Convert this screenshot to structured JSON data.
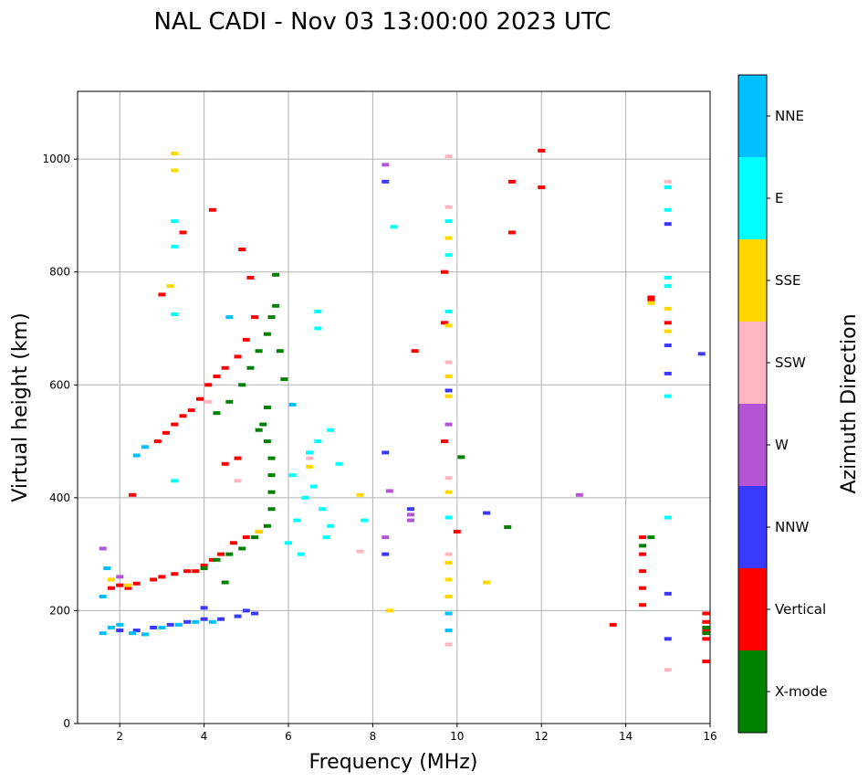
{
  "chart_data": {
    "type": "scatter",
    "title": "NAL CADI - Nov 03 13:00:00 2023 UTC",
    "xlabel": "Frequency (MHz)",
    "ylabel": "Virtual height (km)",
    "xlim": [
      1,
      16
    ],
    "ylim": [
      0,
      1120
    ],
    "xticks": [
      2,
      4,
      6,
      8,
      10,
      12,
      14,
      16
    ],
    "yticks": [
      0,
      200,
      400,
      600,
      800,
      1000
    ],
    "grid": true,
    "colorbar": {
      "label": "Azimuth Direction",
      "categories": [
        {
          "name": "X-mode",
          "color": "#008000"
        },
        {
          "name": "Vertical",
          "color": "#ff0000"
        },
        {
          "name": "NNW",
          "color": "#3a3aff"
        },
        {
          "name": "W",
          "color": "#b455d6"
        },
        {
          "name": "SSW",
          "color": "#ffb6c1"
        },
        {
          "name": "SSE",
          "color": "#ffd700"
        },
        {
          "name": "E",
          "color": "#00ffff"
        },
        {
          "name": "NNE",
          "color": "#00bfff"
        }
      ]
    },
    "series": [
      {
        "name": "Vertical",
        "points": [
          [
            1.8,
            240
          ],
          [
            2.0,
            245
          ],
          [
            2.2,
            240
          ],
          [
            2.4,
            248
          ],
          [
            2.8,
            255
          ],
          [
            3.0,
            260
          ],
          [
            3.3,
            265
          ],
          [
            3.6,
            270
          ],
          [
            3.8,
            270
          ],
          [
            4.0,
            280
          ],
          [
            4.2,
            290
          ],
          [
            4.4,
            300
          ],
          [
            4.7,
            320
          ],
          [
            5.0,
            330
          ],
          [
            5.3,
            340
          ],
          [
            2.9,
            500
          ],
          [
            3.1,
            515
          ],
          [
            3.3,
            530
          ],
          [
            3.5,
            545
          ],
          [
            3.7,
            555
          ],
          [
            3.9,
            575
          ],
          [
            4.1,
            600
          ],
          [
            4.3,
            615
          ],
          [
            4.5,
            630
          ],
          [
            4.8,
            650
          ],
          [
            5.0,
            680
          ],
          [
            5.2,
            720
          ],
          [
            2.3,
            405
          ],
          [
            3.0,
            760
          ],
          [
            3.5,
            870
          ],
          [
            4.2,
            910
          ],
          [
            4.9,
            840
          ],
          [
            5.1,
            790
          ],
          [
            4.8,
            470
          ],
          [
            4.5,
            460
          ],
          [
            9.0,
            660
          ],
          [
            9.7,
            710
          ],
          [
            9.7,
            800
          ],
          [
            9.7,
            500
          ],
          [
            10.0,
            340
          ],
          [
            11.3,
            870
          ],
          [
            11.3,
            960
          ],
          [
            12.0,
            950
          ],
          [
            12.0,
            1015
          ],
          [
            13.7,
            175
          ],
          [
            14.4,
            210
          ],
          [
            14.4,
            240
          ],
          [
            14.4,
            270
          ],
          [
            14.4,
            300
          ],
          [
            14.4,
            330
          ],
          [
            14.6,
            750
          ],
          [
            14.6,
            755
          ],
          [
            15.0,
            710
          ],
          [
            15.9,
            110
          ],
          [
            15.9,
            150
          ],
          [
            15.9,
            165
          ],
          [
            15.9,
            180
          ],
          [
            15.9,
            195
          ]
        ]
      },
      {
        "name": "X-mode",
        "points": [
          [
            4.0,
            275
          ],
          [
            4.3,
            290
          ],
          [
            4.6,
            300
          ],
          [
            4.9,
            310
          ],
          [
            5.2,
            330
          ],
          [
            5.5,
            350
          ],
          [
            5.6,
            380
          ],
          [
            5.6,
            410
          ],
          [
            5.6,
            440
          ],
          [
            5.6,
            470
          ],
          [
            5.5,
            500
          ],
          [
            5.4,
            530
          ],
          [
            5.5,
            560
          ],
          [
            4.3,
            550
          ],
          [
            4.6,
            570
          ],
          [
            4.9,
            600
          ],
          [
            5.1,
            630
          ],
          [
            5.3,
            660
          ],
          [
            5.5,
            690
          ],
          [
            5.6,
            720
          ],
          [
            5.7,
            740
          ],
          [
            5.7,
            795
          ],
          [
            5.9,
            610
          ],
          [
            5.8,
            660
          ],
          [
            4.5,
            250
          ],
          [
            5.3,
            520
          ],
          [
            14.4,
            315
          ],
          [
            14.6,
            330
          ],
          [
            11.2,
            348
          ],
          [
            10.1,
            472
          ],
          [
            15.9,
            170
          ],
          [
            15.9,
            160
          ]
        ]
      },
      {
        "name": "NNW",
        "points": [
          [
            2.0,
            165
          ],
          [
            2.4,
            165
          ],
          [
            2.8,
            170
          ],
          [
            3.2,
            175
          ],
          [
            3.6,
            180
          ],
          [
            4.0,
            185
          ],
          [
            4.4,
            185
          ],
          [
            4.8,
            190
          ],
          [
            5.2,
            195
          ],
          [
            4.0,
            205
          ],
          [
            5.0,
            200
          ],
          [
            8.3,
            300
          ],
          [
            8.3,
            480
          ],
          [
            8.3,
            960
          ],
          [
            8.9,
            380
          ],
          [
            9.8,
            590
          ],
          [
            10.7,
            373
          ],
          [
            15.0,
            150
          ],
          [
            15.0,
            230
          ],
          [
            15.0,
            620
          ],
          [
            15.0,
            670
          ],
          [
            15.0,
            885
          ],
          [
            15.8,
            655
          ]
        ]
      },
      {
        "name": "W",
        "points": [
          [
            1.6,
            310
          ],
          [
            2.0,
            260
          ],
          [
            8.3,
            330
          ],
          [
            8.4,
            412
          ],
          [
            8.9,
            360
          ],
          [
            8.9,
            370
          ],
          [
            12.9,
            405
          ],
          [
            8.3,
            990
          ],
          [
            6.5,
            480
          ],
          [
            9.8,
            530
          ]
        ]
      },
      {
        "name": "SSW",
        "points": [
          [
            4.1,
            570
          ],
          [
            6.5,
            470
          ],
          [
            7.7,
            305
          ],
          [
            9.8,
            1005
          ],
          [
            9.8,
            915
          ],
          [
            9.8,
            640
          ],
          [
            9.8,
            435
          ],
          [
            9.8,
            300
          ],
          [
            9.8,
            140
          ],
          [
            15.0,
            95
          ],
          [
            15.0,
            960
          ],
          [
            4.8,
            430
          ]
        ]
      },
      {
        "name": "SSE",
        "points": [
          [
            1.8,
            255
          ],
          [
            2.2,
            245
          ],
          [
            3.3,
            1010
          ],
          [
            3.3,
            980
          ],
          [
            3.2,
            775
          ],
          [
            8.4,
            200
          ],
          [
            9.8,
            285
          ],
          [
            9.8,
            255
          ],
          [
            9.8,
            225
          ],
          [
            9.8,
            410
          ],
          [
            9.8,
            580
          ],
          [
            9.8,
            615
          ],
          [
            9.8,
            705
          ],
          [
            9.8,
            860
          ],
          [
            10.7,
            250
          ],
          [
            7.7,
            405
          ],
          [
            15.0,
            695
          ],
          [
            15.0,
            735
          ],
          [
            14.6,
            745
          ],
          [
            6.5,
            455
          ],
          [
            5.3,
            340
          ]
        ]
      },
      {
        "name": "E",
        "points": [
          [
            6.0,
            320
          ],
          [
            6.2,
            360
          ],
          [
            6.4,
            400
          ],
          [
            6.6,
            420
          ],
          [
            6.8,
            380
          ],
          [
            7.0,
            350
          ],
          [
            6.5,
            480
          ],
          [
            6.7,
            500
          ],
          [
            7.2,
            460
          ],
          [
            6.9,
            330
          ],
          [
            6.3,
            300
          ],
          [
            6.7,
            700
          ],
          [
            6.7,
            730
          ],
          [
            7.0,
            520
          ],
          [
            6.1,
            440
          ],
          [
            7.8,
            360
          ],
          [
            8.5,
            880
          ],
          [
            9.8,
            890
          ],
          [
            9.8,
            830
          ],
          [
            9.8,
            730
          ],
          [
            9.8,
            365
          ],
          [
            15.0,
            365
          ],
          [
            15.0,
            580
          ],
          [
            15.0,
            775
          ],
          [
            15.0,
            790
          ],
          [
            15.0,
            910
          ],
          [
            15.0,
            950
          ],
          [
            3.3,
            890
          ],
          [
            3.3,
            845
          ],
          [
            3.3,
            725
          ],
          [
            3.3,
            430
          ]
        ]
      },
      {
        "name": "NNE",
        "points": [
          [
            1.6,
            160
          ],
          [
            1.8,
            170
          ],
          [
            2.0,
            175
          ],
          [
            2.3,
            160
          ],
          [
            2.6,
            158
          ],
          [
            3.0,
            170
          ],
          [
            3.4,
            175
          ],
          [
            3.8,
            180
          ],
          [
            4.2,
            180
          ],
          [
            1.6,
            225
          ],
          [
            1.7,
            275
          ],
          [
            2.4,
            475
          ],
          [
            2.6,
            490
          ],
          [
            4.6,
            720
          ],
          [
            6.1,
            565
          ],
          [
            9.8,
            165
          ],
          [
            9.8,
            195
          ]
        ]
      }
    ]
  }
}
